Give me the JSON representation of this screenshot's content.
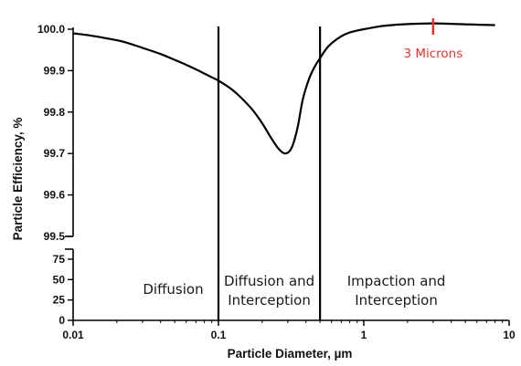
{
  "chart_data": {
    "type": "line",
    "title": "",
    "xlabel": "Particle Diameter, µm",
    "ylabel": "Particle Efficiency, %",
    "x_scale": "log",
    "x_ticks": [
      0.01,
      0.1,
      1,
      10
    ],
    "x_tick_labels": [
      "0.01",
      "0.1",
      "1",
      "10"
    ],
    "xlim": [
      0.01,
      10
    ],
    "y_axis_broken": true,
    "y_upper_ticks": [
      99.5,
      99.6,
      99.7,
      99.8,
      99.9,
      100.0
    ],
    "y_upper_tick_labels": [
      "99.5",
      "99.6",
      "99.7",
      "99.8",
      "99.9",
      "100.0"
    ],
    "y_upper_lim": [
      99.5,
      100.0
    ],
    "y_lower_ticks": [
      0,
      25,
      50,
      75
    ],
    "y_lower_tick_labels": [
      "0",
      "25",
      "50",
      "75"
    ],
    "y_lower_lim": [
      0,
      85
    ],
    "grid": false,
    "legend": false,
    "series": [
      {
        "x": [
          0.01,
          0.013,
          0.017,
          0.022,
          0.03,
          0.04,
          0.05,
          0.06,
          0.07,
          0.08,
          0.09,
          0.1,
          0.12,
          0.14,
          0.17,
          0.2,
          0.23,
          0.26,
          0.29,
          0.32,
          0.35,
          0.38,
          0.42,
          0.46,
          0.5,
          0.55,
          0.6,
          0.7,
          0.8,
          1.0,
          1.3,
          1.7,
          2.2,
          3.0,
          4.0,
          5.0,
          6.0,
          8.0
        ],
        "y": [
          99.99,
          99.985,
          99.978,
          99.97,
          99.955,
          99.94,
          99.926,
          99.914,
          99.903,
          99.893,
          99.884,
          99.876,
          99.858,
          99.838,
          99.807,
          99.773,
          99.738,
          99.711,
          99.7,
          99.715,
          99.762,
          99.83,
          99.88,
          99.91,
          99.93,
          99.952,
          99.966,
          99.983,
          99.992,
          100.0,
          100.007,
          100.011,
          100.013,
          100.014,
          100.013,
          100.012,
          100.011,
          100.01
        ]
      }
    ],
    "vertical_lines": [
      0.1,
      0.5
    ],
    "regions": [
      {
        "lines": [
          "Diffusion"
        ]
      },
      {
        "lines": [
          "Diffusion and",
          "Interception"
        ]
      },
      {
        "lines": [
          "Impaction and",
          "Interception"
        ]
      }
    ],
    "marker": {
      "x": 3.0,
      "label": "3 Microns",
      "color": "#e8352c"
    }
  }
}
